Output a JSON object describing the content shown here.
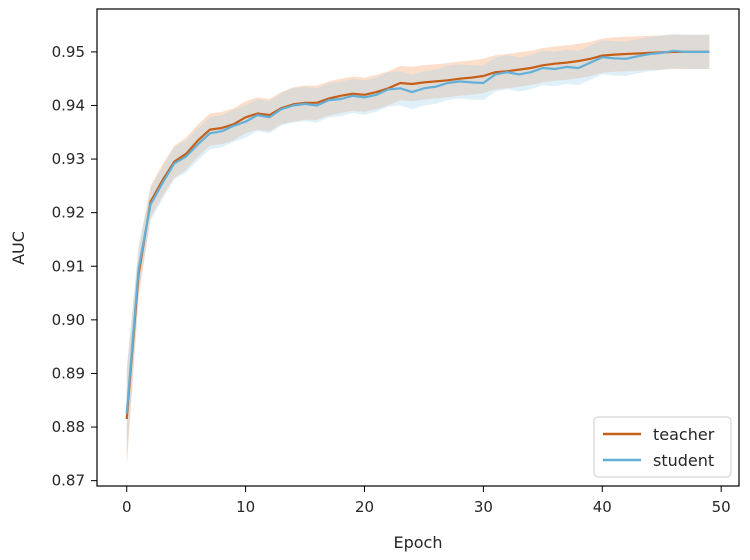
{
  "chart_data": {
    "type": "line",
    "title": "",
    "xlabel": "Epoch",
    "ylabel": "AUC",
    "xlim": [
      -2.5,
      51.5
    ],
    "ylim": [
      0.869,
      0.958
    ],
    "xticks": [
      0,
      10,
      20,
      30,
      40,
      50
    ],
    "xtick_labels": [
      "0",
      "10",
      "20",
      "30",
      "40",
      "50"
    ],
    "yticks": [
      0.87,
      0.88,
      0.89,
      0.9,
      0.91,
      0.92,
      0.93,
      0.94,
      0.95
    ],
    "ytick_labels": [
      "0.87",
      "0.88",
      "0.89",
      "0.90",
      "0.91",
      "0.92",
      "0.93",
      "0.94",
      "0.95"
    ],
    "grid": false,
    "legend_position": "lower-right",
    "x": [
      0,
      1,
      2,
      3,
      4,
      5,
      6,
      7,
      8,
      9,
      10,
      11,
      12,
      13,
      14,
      15,
      16,
      17,
      18,
      19,
      20,
      21,
      22,
      23,
      24,
      25,
      26,
      27,
      28,
      29,
      30,
      31,
      32,
      33,
      34,
      35,
      36,
      37,
      38,
      39,
      40,
      41,
      42,
      43,
      44,
      45,
      46,
      47,
      48,
      49
    ],
    "series": [
      {
        "name": "teacher",
        "color": "#c65f17",
        "band_color": "#f5a36b",
        "values": [
          0.8815,
          0.9085,
          0.922,
          0.926,
          0.9295,
          0.931,
          0.9335,
          0.9355,
          0.9358,
          0.9365,
          0.9378,
          0.9385,
          0.9382,
          0.9395,
          0.9402,
          0.9405,
          0.9405,
          0.9413,
          0.9418,
          0.9422,
          0.942,
          0.9425,
          0.9432,
          0.9442,
          0.944,
          0.9443,
          0.9445,
          0.9447,
          0.945,
          0.9452,
          0.9455,
          0.9462,
          0.9464,
          0.9467,
          0.947,
          0.9475,
          0.9478,
          0.948,
          0.9483,
          0.9487,
          0.9493,
          0.9495,
          0.9496,
          0.9497,
          0.9498,
          0.9499,
          0.95,
          0.95,
          0.95,
          0.95
        ],
        "band_halfwidth": [
          0.009,
          0.0045,
          0.003,
          0.003,
          0.003,
          0.003,
          0.003,
          0.003,
          0.003,
          0.003,
          0.003,
          0.003,
          0.003,
          0.003,
          0.0032,
          0.0032,
          0.0032,
          0.0032,
          0.0032,
          0.0032,
          0.0032,
          0.0032,
          0.0032,
          0.0032,
          0.0032,
          0.0032,
          0.0032,
          0.0032,
          0.0032,
          0.0032,
          0.0032,
          0.0032,
          0.0032,
          0.0032,
          0.0032,
          0.0032,
          0.0032,
          0.0032,
          0.0032,
          0.0032,
          0.0032,
          0.0032,
          0.0032,
          0.0032,
          0.0032,
          0.0032,
          0.0032,
          0.0032,
          0.0032,
          0.0032
        ]
      },
      {
        "name": "student",
        "color": "#63afd7",
        "band_color": "#a7d5ef",
        "values": [
          0.8825,
          0.9095,
          0.9215,
          0.9255,
          0.9292,
          0.9305,
          0.9328,
          0.9348,
          0.9352,
          0.9362,
          0.937,
          0.9382,
          0.9378,
          0.9393,
          0.94,
          0.9403,
          0.94,
          0.941,
          0.9412,
          0.9418,
          0.9415,
          0.942,
          0.943,
          0.9432,
          0.9425,
          0.9432,
          0.9435,
          0.9442,
          0.9445,
          0.9443,
          0.9442,
          0.9458,
          0.9462,
          0.9458,
          0.9462,
          0.947,
          0.9468,
          0.9472,
          0.947,
          0.948,
          0.949,
          0.9488,
          0.9487,
          0.9492,
          0.9496,
          0.9498,
          0.9502,
          0.95,
          0.95,
          0.95
        ],
        "band_halfwidth": [
          0.0085,
          0.0045,
          0.003,
          0.003,
          0.003,
          0.003,
          0.003,
          0.003,
          0.003,
          0.003,
          0.003,
          0.003,
          0.003,
          0.003,
          0.0032,
          0.0032,
          0.0032,
          0.0032,
          0.0032,
          0.0032,
          0.0032,
          0.0032,
          0.0032,
          0.0032,
          0.0032,
          0.0032,
          0.0032,
          0.0032,
          0.0032,
          0.0032,
          0.0032,
          0.0032,
          0.0032,
          0.0032,
          0.0032,
          0.0032,
          0.0032,
          0.0032,
          0.0032,
          0.0032,
          0.0032,
          0.0032,
          0.0032,
          0.0032,
          0.0032,
          0.0032,
          0.0032,
          0.0032,
          0.0032,
          0.0032
        ]
      }
    ]
  }
}
